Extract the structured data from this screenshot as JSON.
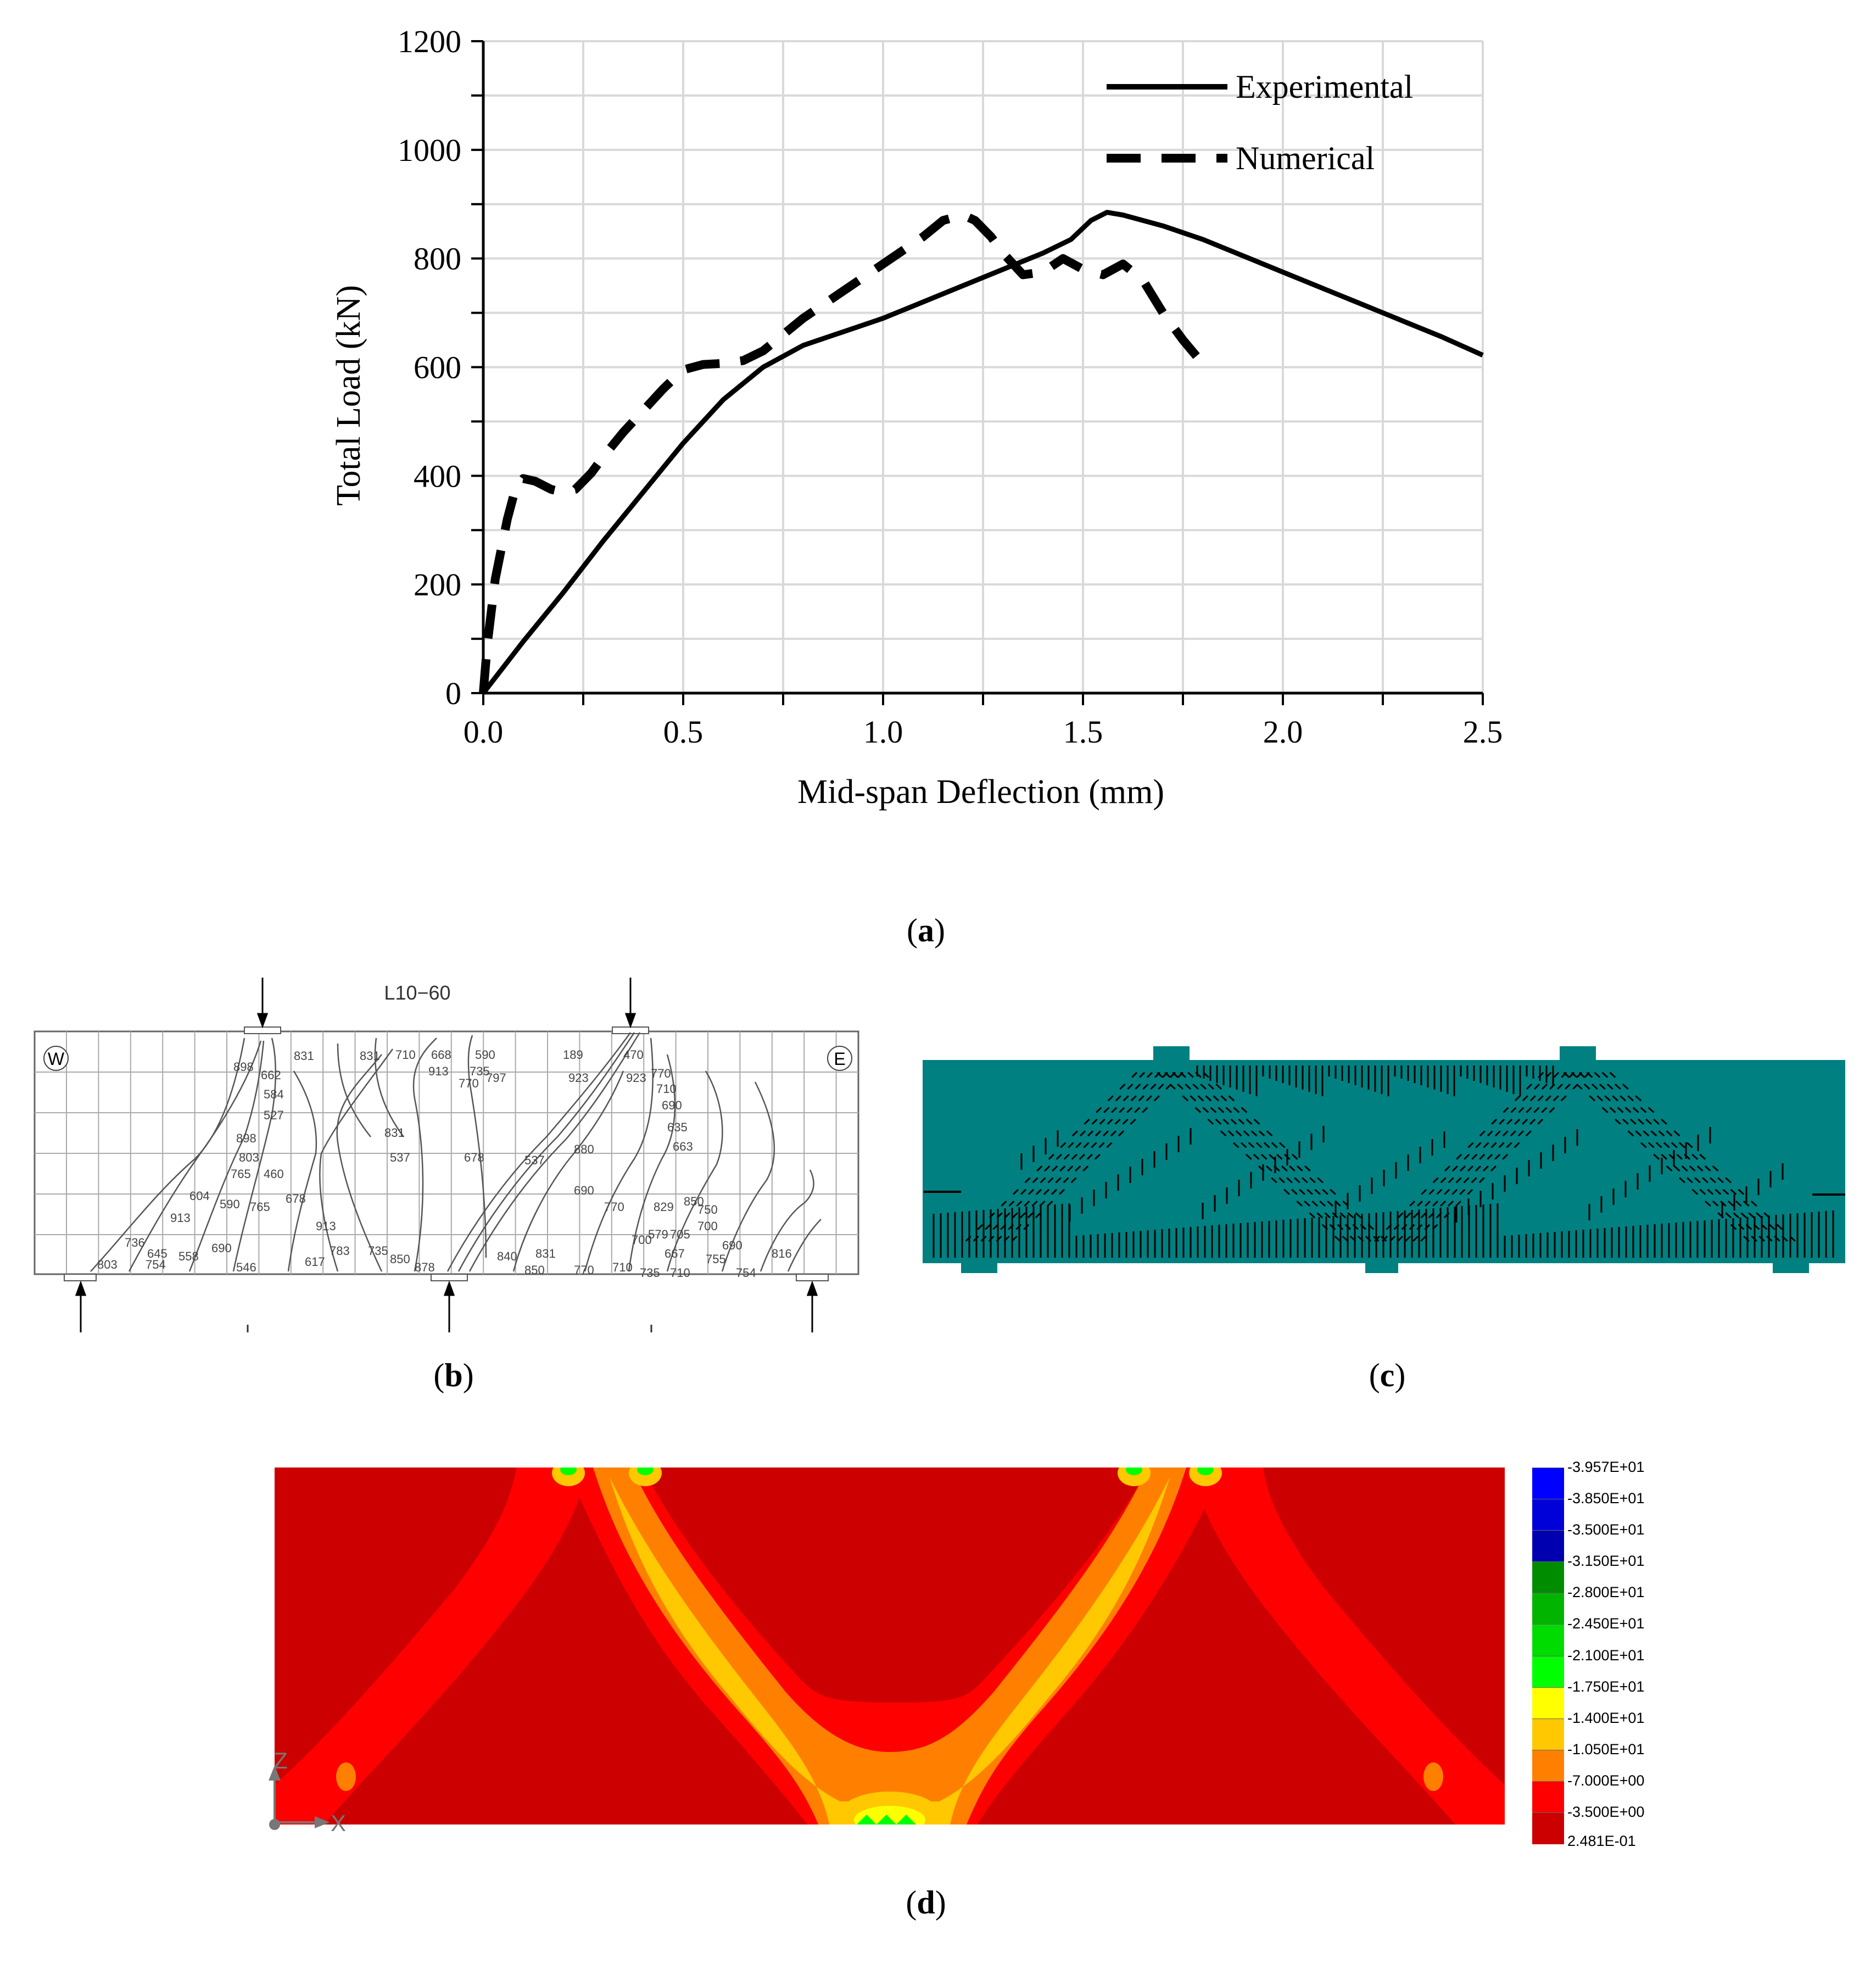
{
  "chart_data": {
    "type": "line",
    "title": "",
    "xlabel": "Mid-span Deflection (mm)",
    "ylabel": "Total Load (kN)",
    "xlim": [
      0,
      2.5
    ],
    "ylim": [
      0,
      1200
    ],
    "xticks": [
      0.0,
      0.5,
      1.0,
      1.5,
      2.0,
      2.5
    ],
    "xtick_labels": [
      "0.0",
      "0.5",
      "1.0",
      "1.5",
      "2.0",
      "2.5"
    ],
    "yticks": [
      0,
      200,
      400,
      600,
      800,
      1000,
      1200
    ],
    "ytick_labels": [
      "0",
      "200",
      "400",
      "600",
      "800",
      "1000",
      "1200"
    ],
    "grid": true,
    "legend_position": "top-right",
    "series": [
      {
        "name": "Experimental",
        "style": "solid",
        "color": "#000000",
        "x": [
          0.0,
          0.1,
          0.2,
          0.3,
          0.4,
          0.5,
          0.6,
          0.7,
          0.8,
          0.9,
          1.0,
          1.1,
          1.2,
          1.3,
          1.4,
          1.47,
          1.52,
          1.56,
          1.6,
          1.7,
          1.8,
          1.9,
          2.0,
          2.1,
          2.2,
          2.3,
          2.4,
          2.5
        ],
        "y": [
          0,
          95,
          185,
          280,
          370,
          460,
          540,
          600,
          640,
          665,
          690,
          720,
          750,
          780,
          810,
          835,
          870,
          885,
          880,
          860,
          835,
          805,
          775,
          745,
          715,
          685,
          655,
          622
        ]
      },
      {
        "name": "Numerical",
        "style": "dashed",
        "color": "#000000",
        "x": [
          0.0,
          0.01,
          0.03,
          0.06,
          0.08,
          0.1,
          0.13,
          0.17,
          0.2,
          0.23,
          0.27,
          0.3,
          0.35,
          0.4,
          0.45,
          0.5,
          0.55,
          0.6,
          0.65,
          0.7,
          0.8,
          0.9,
          1.0,
          1.1,
          1.15,
          1.2,
          1.23,
          1.27,
          1.3,
          1.35,
          1.4,
          1.45,
          1.5,
          1.55,
          1.6,
          1.65,
          1.7,
          1.75,
          1.79
        ],
        "y": [
          0,
          90,
          210,
          320,
          375,
          395,
          390,
          375,
          370,
          375,
          405,
          435,
          480,
          520,
          560,
          595,
          605,
          607,
          612,
          630,
          690,
          740,
          790,
          840,
          870,
          880,
          870,
          840,
          810,
          770,
          775,
          800,
          780,
          770,
          790,
          760,
          700,
          650,
          615
        ]
      }
    ]
  },
  "captions": {
    "a": "a",
    "b": "b",
    "c": "c",
    "d": "d"
  },
  "panel_b": {
    "title": "L10−60",
    "west": "W",
    "east": "E",
    "crack_labels": [
      "898",
      "662",
      "584",
      "527",
      "831",
      "831",
      "710",
      "668",
      "913",
      "590",
      "735",
      "797",
      "770",
      "189",
      "923",
      "470",
      "923",
      "770",
      "710",
      "690",
      "635",
      "663",
      "898",
      "803",
      "765",
      "460",
      "831",
      "537",
      "678",
      "537",
      "880",
      "690",
      "604",
      "590",
      "765",
      "678",
      "913",
      "736",
      "645",
      "558",
      "690",
      "754",
      "546",
      "913",
      "617",
      "783",
      "735",
      "850",
      "878",
      "770",
      "710",
      "840",
      "831",
      "850",
      "770",
      "700",
      "579",
      "705",
      "829",
      "850",
      "750",
      "700",
      "690",
      "667",
      "755",
      "710",
      "735",
      "754",
      "816",
      "803"
    ]
  },
  "panel_d": {
    "axis_z": "Z",
    "axis_x": "X",
    "colorbar": [
      {
        "label": "-3.957E+01",
        "color": "#0000ff"
      },
      {
        "label": "-3.850E+01",
        "color": "#0000d8"
      },
      {
        "label": "-3.500E+01",
        "color": "#0000b0"
      },
      {
        "label": "-3.150E+01",
        "color": "#008c00"
      },
      {
        "label": "-2.800E+01",
        "color": "#00b400"
      },
      {
        "label": "-2.450E+01",
        "color": "#00dc00"
      },
      {
        "label": "-2.100E+01",
        "color": "#00ff00"
      },
      {
        "label": "-1.750E+01",
        "color": "#ffff00"
      },
      {
        "label": "-1.400E+01",
        "color": "#ffc800"
      },
      {
        "label": "-1.050E+01",
        "color": "#ff8000"
      },
      {
        "label": "-7.000E+00",
        "color": "#ff0000"
      },
      {
        "label": "-3.500E+00",
        "color": "#ff0000"
      },
      {
        "label": "2.481E-01",
        "color": "#cc0000"
      }
    ]
  },
  "colors": {
    "teal": "#008080",
    "dark_red": "#cc0000",
    "red": "#ff0000",
    "orange": "#ff8000",
    "amber": "#ffc800",
    "yellow": "#ffff00",
    "green": "#00ff00"
  }
}
